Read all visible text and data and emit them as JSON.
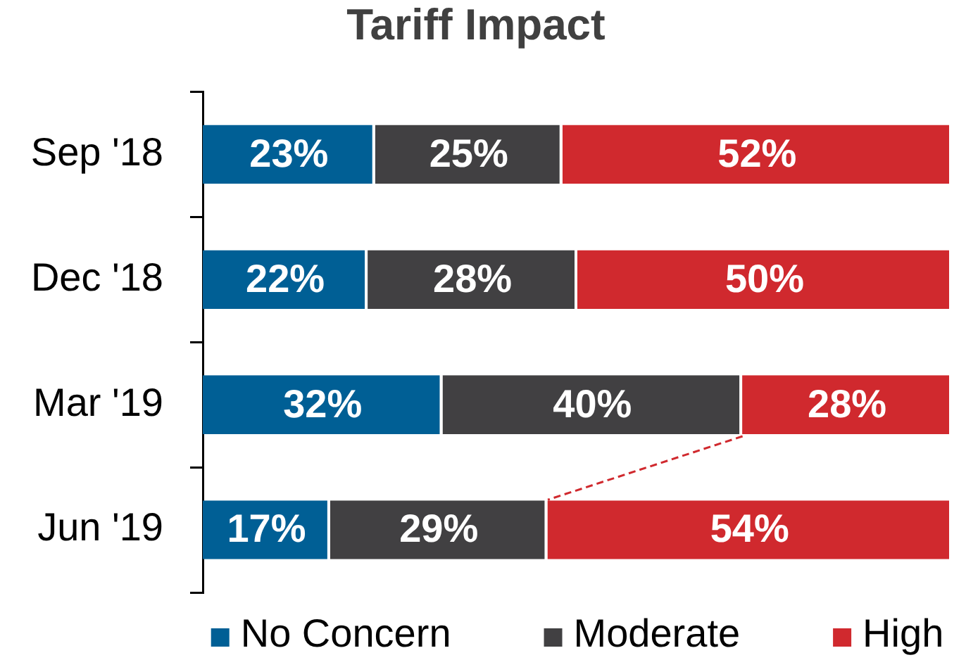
{
  "chart_data": {
    "type": "bar",
    "title": "Tariff Impact",
    "orientation": "horizontal",
    "stacked": true,
    "categories": [
      "Sep '18",
      "Dec '18",
      "Mar '19",
      "Jun '19"
    ],
    "series": [
      {
        "name": "No Concern",
        "color": "#005f95",
        "values": [
          23,
          22,
          32,
          17
        ],
        "value_labels": [
          "23%",
          "22%",
          "32%",
          "17%"
        ]
      },
      {
        "name": "Moderate",
        "color": "#414042",
        "values": [
          25,
          28,
          40,
          29
        ],
        "value_labels": [
          "25%",
          "28%",
          "40%",
          "29%"
        ]
      },
      {
        "name": "High",
        "color": "#d0292e",
        "values": [
          52,
          50,
          28,
          54
        ],
        "value_labels": [
          "52%",
          "50%",
          "28%",
          "54%"
        ]
      }
    ],
    "xlim": [
      0,
      100
    ],
    "tick_labels": "y",
    "legend": "bottom",
    "grid": false
  }
}
